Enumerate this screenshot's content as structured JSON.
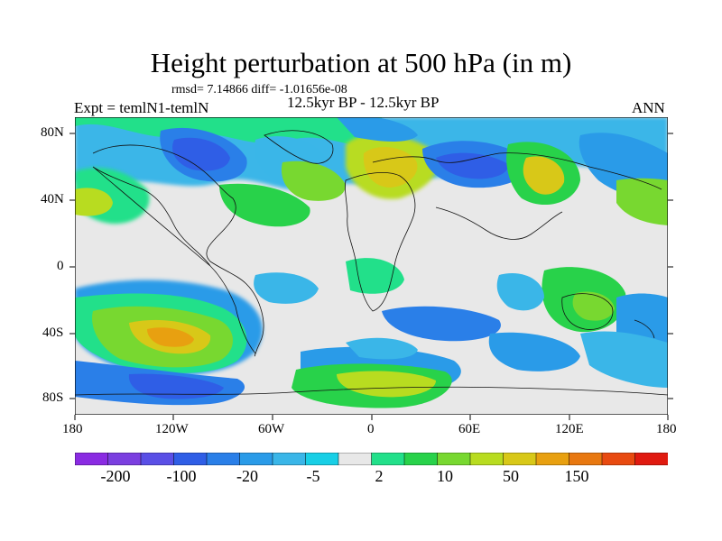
{
  "title": "Height perturbation at 500 hPa (in m)",
  "stats": "rmsd= 7.14866  diff= -1.01656e-08",
  "period": "12.5kyr BP - 12.5kyr BP",
  "experiment": "Expt = temlN1-temlN",
  "season": "ANN",
  "lat_labels": [
    "80N",
    "40N",
    "0",
    "40S",
    "80S"
  ],
  "lon_labels": [
    "180",
    "120W",
    "60W",
    "0",
    "60E",
    "120E",
    "180"
  ],
  "colorbar": {
    "labels": [
      "-200",
      "-100",
      "-20",
      "-5",
      "2",
      "10",
      "50",
      "150"
    ],
    "colors": [
      "#8a2be2",
      "#7b3fe0",
      "#5a4fe6",
      "#2f5ee6",
      "#2a7fe8",
      "#2a9be8",
      "#3ab6e8",
      "#18cfe6",
      "#e8e8e8",
      "#22e08a",
      "#28d24a",
      "#78d830",
      "#b8dc20",
      "#d8c818",
      "#e8a010",
      "#e87810",
      "#e84a10",
      "#e01a10"
    ]
  },
  "icons": {
    "map": "world-map-icon"
  }
}
